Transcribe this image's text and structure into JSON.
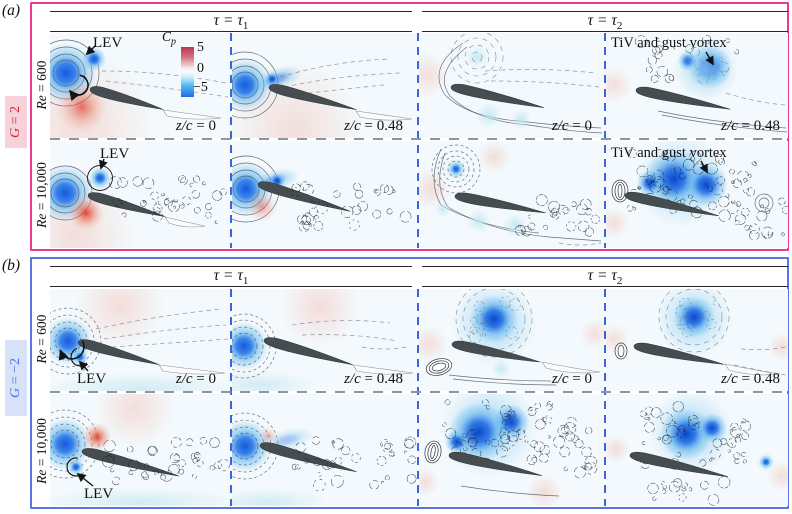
{
  "colors": {
    "panel_a_border": "#ea3a8c",
    "panel_b_border": "#5b76e0",
    "g2_bg": "#f8d2da",
    "g2_text": "#cf2433",
    "gm2_bg": "#d7e1f8",
    "gm2_text": "#4c72e2",
    "divider_blue": "#3d63de",
    "divider_gray": "#8f959b",
    "cp_positive": "#b5384f",
    "cp_zero": "#fcfcfc",
    "cp_negative": "#1e6ce8"
  },
  "panels": [
    {
      "label": "(a)",
      "g": {
        "var": "G",
        "rest": " = 2"
      },
      "tau": [
        {
          "base": "τ = τ",
          "sub": "1"
        },
        {
          "base": "τ = τ",
          "sub": "2"
        }
      ],
      "rows": [
        {
          "var": "Re",
          "rest": " = 600"
        },
        {
          "var": "Re",
          "rest": " = 10,000"
        }
      ],
      "colorbar": {
        "label": "C",
        "label_sub": "p",
        "ticks": [
          "5",
          "0",
          "−5"
        ]
      },
      "cells": [
        {
          "corner": {
            "var": "z/c",
            "rest": " = 0"
          },
          "annotation": "LEV"
        },
        {
          "corner": {
            "var": "z/c",
            "rest": " = 0.48"
          }
        },
        {
          "corner": {
            "var": "z/c",
            "rest": " = 0"
          }
        },
        {
          "corner": {
            "var": "z/c",
            "rest": " = 0.48"
          },
          "annotation": "TiV and gust vortex"
        },
        {
          "annotation": "LEV"
        },
        {},
        {},
        {
          "annotation": "TiV and gust vortex"
        }
      ]
    },
    {
      "label": "(b)",
      "g": {
        "var": "G",
        "rest": " = −2"
      },
      "tau": [
        {
          "base": "τ = τ",
          "sub": "1"
        },
        {
          "base": "τ = τ",
          "sub": "2"
        }
      ],
      "rows": [
        {
          "var": "Re",
          "rest": " = 600"
        },
        {
          "var": "Re",
          "rest": " = 10,000"
        }
      ],
      "cells": [
        {
          "corner": {
            "var": "z/c",
            "rest": " = 0"
          },
          "annotation": "LEV"
        },
        {
          "corner": {
            "var": "z/c",
            "rest": " = 0.48"
          }
        },
        {
          "corner": {
            "var": "z/c",
            "rest": " = 0"
          }
        },
        {
          "corner": {
            "var": "z/c",
            "rest": " = 0.48"
          }
        },
        {
          "annotation": "LEV"
        },
        {},
        {},
        {}
      ]
    }
  ]
}
